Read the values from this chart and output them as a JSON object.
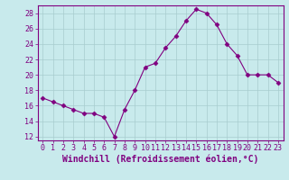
{
  "x": [
    0,
    1,
    2,
    3,
    4,
    5,
    6,
    7,
    8,
    9,
    10,
    11,
    12,
    13,
    14,
    15,
    16,
    17,
    18,
    19,
    20,
    21,
    22,
    23
  ],
  "y": [
    17,
    16.5,
    16,
    15.5,
    15,
    15,
    14.5,
    12,
    15.5,
    18,
    21,
    21.5,
    23.5,
    25,
    27,
    28.5,
    28,
    26.5,
    24,
    22.5,
    20,
    20,
    20,
    19
  ],
  "line_color": "#800080",
  "marker": "D",
  "marker_color": "#800080",
  "bg_color": "#c8eaec",
  "grid_color": "#a8ccce",
  "xlabel": "Windchill (Refroidissement éolien,°C)",
  "ylabel": "",
  "ylim": [
    11.5,
    29
  ],
  "xlim": [
    -0.5,
    23.5
  ],
  "yticks": [
    12,
    14,
    16,
    18,
    20,
    22,
    24,
    26,
    28
  ],
  "xticks": [
    0,
    1,
    2,
    3,
    4,
    5,
    6,
    7,
    8,
    9,
    10,
    11,
    12,
    13,
    14,
    15,
    16,
    17,
    18,
    19,
    20,
    21,
    22,
    23
  ],
  "axis_color": "#800080",
  "tick_label_color": "#800080",
  "font_size": 6,
  "xlabel_fontsize": 7
}
